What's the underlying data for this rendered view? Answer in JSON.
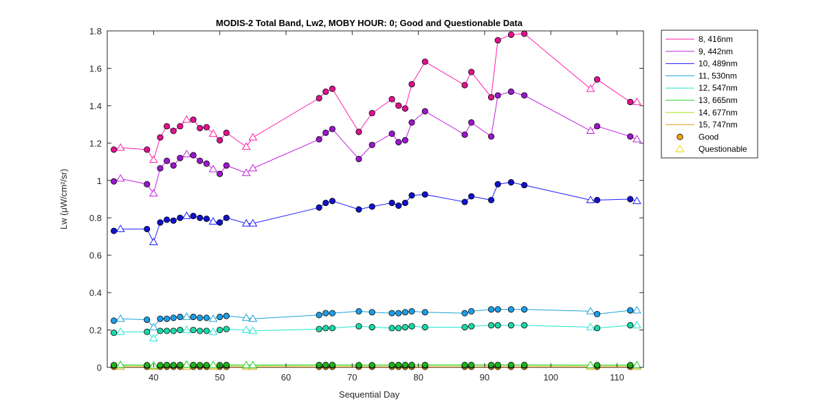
{
  "chart_data": {
    "type": "line",
    "title": "MODIS-2 Total Band,  Lw2, MOBY HOUR: 0;  Good and Questionable Data",
    "xlabel": "Sequential Day",
    "ylabel": "Lw (μW/cm²/sr)",
    "xlim": [
      33,
      114
    ],
    "ylim": [
      0,
      1.8
    ],
    "xticks": [
      "40",
      "50",
      "60",
      "70",
      "80",
      "90",
      "100",
      "110"
    ],
    "yticks": [
      "0",
      "0.2",
      "0.4",
      "0.6",
      "0.8",
      "1",
      "1.2",
      "1.4",
      "1.6",
      "1.8"
    ],
    "grid": false,
    "legend_position": "outside-right",
    "marker_legend": [
      {
        "label": "Good",
        "marker": "circle",
        "fill": "#f5a30a"
      },
      {
        "label": "Questionable",
        "marker": "triangle",
        "stroke": "#e8d60a"
      }
    ],
    "series": [
      {
        "name": "8, 416nm",
        "color": "#ff1aa8",
        "markerFill": "#e0128f",
        "x": [
          34,
          35,
          39,
          40,
          41,
          42,
          43,
          44,
          45,
          46,
          47,
          48,
          49,
          50,
          51,
          54,
          55,
          65,
          66,
          67,
          71,
          73,
          76,
          77,
          78,
          79,
          81,
          87,
          88,
          91,
          92,
          94,
          96,
          106,
          107,
          112,
          113
        ],
        "y": [
          1.165,
          1.175,
          1.165,
          1.11,
          1.23,
          1.29,
          1.265,
          1.29,
          1.325,
          1.325,
          1.28,
          1.285,
          1.25,
          1.215,
          1.255,
          1.18,
          1.23,
          1.44,
          1.475,
          1.49,
          1.26,
          1.36,
          1.435,
          1.4,
          1.385,
          1.515,
          1.635,
          1.51,
          1.58,
          1.445,
          1.75,
          1.78,
          1.785,
          1.49,
          1.54,
          1.42,
          1.42
        ],
        "quality": [
          "G",
          "Q",
          "G",
          "Q",
          "G",
          "G",
          "G",
          "G",
          "Q",
          "G",
          "G",
          "G",
          "Q",
          "G",
          "G",
          "Q",
          "Q",
          "G",
          "G",
          "G",
          "G",
          "G",
          "G",
          "G",
          "G",
          "G",
          "G",
          "G",
          "G",
          "G",
          "G",
          "G",
          "G",
          "Q",
          "G",
          "G",
          "Q"
        ]
      },
      {
        "name": "9, 442nm",
        "color": "#c01de0",
        "markerFill": "#9a17cc",
        "x": [
          34,
          35,
          39,
          40,
          41,
          42,
          43,
          44,
          45,
          46,
          47,
          48,
          49,
          50,
          51,
          54,
          55,
          65,
          66,
          67,
          71,
          73,
          76,
          77,
          78,
          79,
          81,
          87,
          88,
          91,
          92,
          94,
          96,
          106,
          107,
          112,
          113
        ],
        "y": [
          0.995,
          1.01,
          0.98,
          0.93,
          1.065,
          1.105,
          1.08,
          1.12,
          1.14,
          1.135,
          1.105,
          1.09,
          1.06,
          1.035,
          1.08,
          1.04,
          1.065,
          1.22,
          1.255,
          1.275,
          1.115,
          1.19,
          1.25,
          1.205,
          1.215,
          1.31,
          1.37,
          1.245,
          1.31,
          1.235,
          1.455,
          1.475,
          1.455,
          1.265,
          1.29,
          1.235,
          1.22
        ],
        "quality": [
          "G",
          "Q",
          "G",
          "Q",
          "G",
          "G",
          "G",
          "G",
          "Q",
          "G",
          "G",
          "G",
          "Q",
          "G",
          "G",
          "Q",
          "Q",
          "G",
          "G",
          "G",
          "G",
          "G",
          "G",
          "G",
          "G",
          "G",
          "G",
          "G",
          "G",
          "G",
          "G",
          "G",
          "G",
          "Q",
          "G",
          "G",
          "Q"
        ]
      },
      {
        "name": "10, 489nm",
        "color": "#1a1aff",
        "markerFill": "#1212cc",
        "x": [
          34,
          35,
          39,
          40,
          41,
          42,
          43,
          44,
          45,
          46,
          47,
          48,
          49,
          50,
          51,
          54,
          55,
          65,
          66,
          67,
          71,
          73,
          76,
          77,
          78,
          79,
          81,
          87,
          88,
          91,
          92,
          94,
          96,
          106,
          107,
          112,
          113
        ],
        "y": [
          0.73,
          0.74,
          0.74,
          0.67,
          0.775,
          0.79,
          0.785,
          0.8,
          0.81,
          0.81,
          0.8,
          0.795,
          0.78,
          0.775,
          0.8,
          0.77,
          0.77,
          0.855,
          0.88,
          0.89,
          0.845,
          0.86,
          0.88,
          0.865,
          0.88,
          0.92,
          0.925,
          0.885,
          0.915,
          0.895,
          0.98,
          0.99,
          0.975,
          0.895,
          0.895,
          0.9,
          0.89
        ],
        "quality": [
          "G",
          "Q",
          "G",
          "Q",
          "G",
          "G",
          "G",
          "G",
          "Q",
          "G",
          "G",
          "G",
          "Q",
          "G",
          "G",
          "Q",
          "Q",
          "G",
          "G",
          "G",
          "G",
          "G",
          "G",
          "G",
          "G",
          "G",
          "G",
          "G",
          "G",
          "G",
          "G",
          "G",
          "G",
          "Q",
          "G",
          "G",
          "Q"
        ]
      },
      {
        "name": "11, 530nm",
        "color": "#1aa0d9",
        "markerFill": "#1c9ee6",
        "x": [
          34,
          35,
          39,
          40,
          41,
          42,
          43,
          44,
          45,
          46,
          47,
          48,
          49,
          50,
          51,
          54,
          55,
          65,
          66,
          67,
          71,
          73,
          76,
          77,
          78,
          79,
          81,
          87,
          88,
          91,
          92,
          94,
          96,
          106,
          107,
          112,
          113
        ],
        "y": [
          0.25,
          0.26,
          0.255,
          0.215,
          0.26,
          0.26,
          0.265,
          0.27,
          0.27,
          0.27,
          0.265,
          0.265,
          0.26,
          0.27,
          0.275,
          0.265,
          0.26,
          0.28,
          0.29,
          0.29,
          0.3,
          0.295,
          0.29,
          0.29,
          0.295,
          0.3,
          0.295,
          0.29,
          0.3,
          0.31,
          0.31,
          0.31,
          0.31,
          0.3,
          0.285,
          0.305,
          0.305
        ],
        "quality": [
          "G",
          "Q",
          "G",
          "Q",
          "G",
          "G",
          "G",
          "G",
          "Q",
          "G",
          "G",
          "G",
          "Q",
          "G",
          "G",
          "Q",
          "Q",
          "G",
          "G",
          "G",
          "G",
          "G",
          "G",
          "G",
          "G",
          "G",
          "G",
          "G",
          "G",
          "G",
          "G",
          "G",
          "G",
          "Q",
          "G",
          "G",
          "Q"
        ]
      },
      {
        "name": "12, 547nm",
        "color": "#1ae6d0",
        "markerFill": "#1bd9a8",
        "x": [
          34,
          35,
          39,
          40,
          41,
          42,
          43,
          44,
          45,
          46,
          47,
          48,
          49,
          50,
          51,
          54,
          55,
          65,
          66,
          67,
          71,
          73,
          76,
          77,
          78,
          79,
          81,
          87,
          88,
          91,
          92,
          94,
          96,
          106,
          107,
          112,
          113
        ],
        "y": [
          0.185,
          0.19,
          0.19,
          0.155,
          0.195,
          0.195,
          0.195,
          0.2,
          0.2,
          0.2,
          0.195,
          0.195,
          0.19,
          0.2,
          0.205,
          0.2,
          0.195,
          0.205,
          0.21,
          0.21,
          0.22,
          0.215,
          0.21,
          0.21,
          0.215,
          0.22,
          0.215,
          0.215,
          0.22,
          0.225,
          0.225,
          0.225,
          0.225,
          0.215,
          0.21,
          0.225,
          0.225
        ],
        "quality": [
          "G",
          "Q",
          "G",
          "Q",
          "G",
          "G",
          "G",
          "G",
          "Q",
          "G",
          "G",
          "G",
          "Q",
          "G",
          "G",
          "Q",
          "Q",
          "G",
          "G",
          "G",
          "G",
          "G",
          "G",
          "G",
          "G",
          "G",
          "G",
          "G",
          "G",
          "G",
          "G",
          "G",
          "G",
          "Q",
          "G",
          "G",
          "Q"
        ]
      },
      {
        "name": "13, 665nm",
        "color": "#22cc22",
        "markerFill": "#20b020",
        "x": [
          34,
          35,
          39,
          40,
          41,
          42,
          43,
          44,
          45,
          46,
          47,
          48,
          49,
          50,
          51,
          54,
          55,
          65,
          66,
          67,
          71,
          73,
          76,
          77,
          78,
          79,
          81,
          87,
          88,
          91,
          92,
          94,
          96,
          106,
          107,
          112,
          113
        ],
        "y": [
          0.012,
          0.013,
          0.012,
          0.01,
          0.012,
          0.013,
          0.012,
          0.013,
          0.014,
          0.013,
          0.012,
          0.012,
          0.012,
          0.012,
          0.013,
          0.012,
          0.012,
          0.013,
          0.013,
          0.013,
          0.012,
          0.012,
          0.013,
          0.013,
          0.013,
          0.013,
          0.013,
          0.013,
          0.013,
          0.013,
          0.013,
          0.013,
          0.013,
          0.012,
          0.012,
          0.012,
          0.012
        ],
        "quality": [
          "G",
          "Q",
          "G",
          "Q",
          "G",
          "G",
          "G",
          "G",
          "Q",
          "G",
          "G",
          "G",
          "Q",
          "G",
          "G",
          "Q",
          "Q",
          "G",
          "G",
          "G",
          "G",
          "G",
          "G",
          "G",
          "G",
          "G",
          "G",
          "G",
          "G",
          "G",
          "G",
          "G",
          "G",
          "Q",
          "G",
          "G",
          "Q"
        ]
      },
      {
        "name": "14, 677nm",
        "color": "#a6e61a",
        "markerFill": "#b8d615",
        "x": [
          34,
          35,
          39,
          40,
          41,
          42,
          43,
          44,
          45,
          46,
          47,
          48,
          49,
          50,
          51,
          54,
          55,
          65,
          66,
          67,
          71,
          73,
          76,
          77,
          78,
          79,
          81,
          87,
          88,
          91,
          92,
          94,
          96,
          106,
          107,
          112,
          113
        ],
        "y": [
          0.01,
          0.011,
          0.01,
          0.008,
          0.01,
          0.011,
          0.01,
          0.011,
          0.012,
          0.011,
          0.01,
          0.01,
          0.01,
          0.01,
          0.011,
          0.01,
          0.01,
          0.011,
          0.011,
          0.011,
          0.01,
          0.01,
          0.011,
          0.011,
          0.011,
          0.011,
          0.011,
          0.011,
          0.011,
          0.011,
          0.011,
          0.011,
          0.011,
          0.01,
          0.01,
          0.01,
          0.01
        ],
        "quality": [
          "G",
          "Q",
          "G",
          "Q",
          "G",
          "G",
          "G",
          "G",
          "Q",
          "G",
          "G",
          "G",
          "Q",
          "G",
          "G",
          "Q",
          "Q",
          "G",
          "G",
          "G",
          "G",
          "G",
          "G",
          "G",
          "G",
          "G",
          "G",
          "G",
          "G",
          "G",
          "G",
          "G",
          "G",
          "Q",
          "G",
          "G",
          "Q"
        ]
      },
      {
        "name": "15, 747nm",
        "color": "#e6a01a",
        "markerFill": "#f5a30a",
        "x": [
          34,
          35,
          39,
          40,
          41,
          42,
          43,
          44,
          45,
          46,
          47,
          48,
          49,
          50,
          51,
          54,
          55,
          65,
          66,
          67,
          71,
          73,
          76,
          77,
          78,
          79,
          81,
          87,
          88,
          91,
          92,
          94,
          96,
          106,
          107,
          112,
          113
        ],
        "y": [
          0.003,
          0.003,
          0.003,
          0.002,
          0.003,
          0.003,
          0.003,
          0.003,
          0.003,
          0.003,
          0.003,
          0.003,
          0.003,
          0.003,
          0.003,
          0.003,
          0.003,
          0.003,
          0.003,
          0.003,
          0.003,
          0.003,
          0.003,
          0.003,
          0.003,
          0.003,
          0.003,
          0.003,
          0.003,
          0.003,
          0.003,
          0.003,
          0.003,
          0.003,
          0.003,
          0.003,
          0.003
        ],
        "quality": [
          "G",
          "Q",
          "G",
          "Q",
          "G",
          "G",
          "G",
          "G",
          "Q",
          "G",
          "G",
          "G",
          "Q",
          "G",
          "G",
          "Q",
          "Q",
          "G",
          "G",
          "G",
          "G",
          "G",
          "G",
          "G",
          "G",
          "G",
          "G",
          "G",
          "G",
          "G",
          "G",
          "G",
          "G",
          "Q",
          "G",
          "G",
          "Q"
        ]
      }
    ]
  }
}
